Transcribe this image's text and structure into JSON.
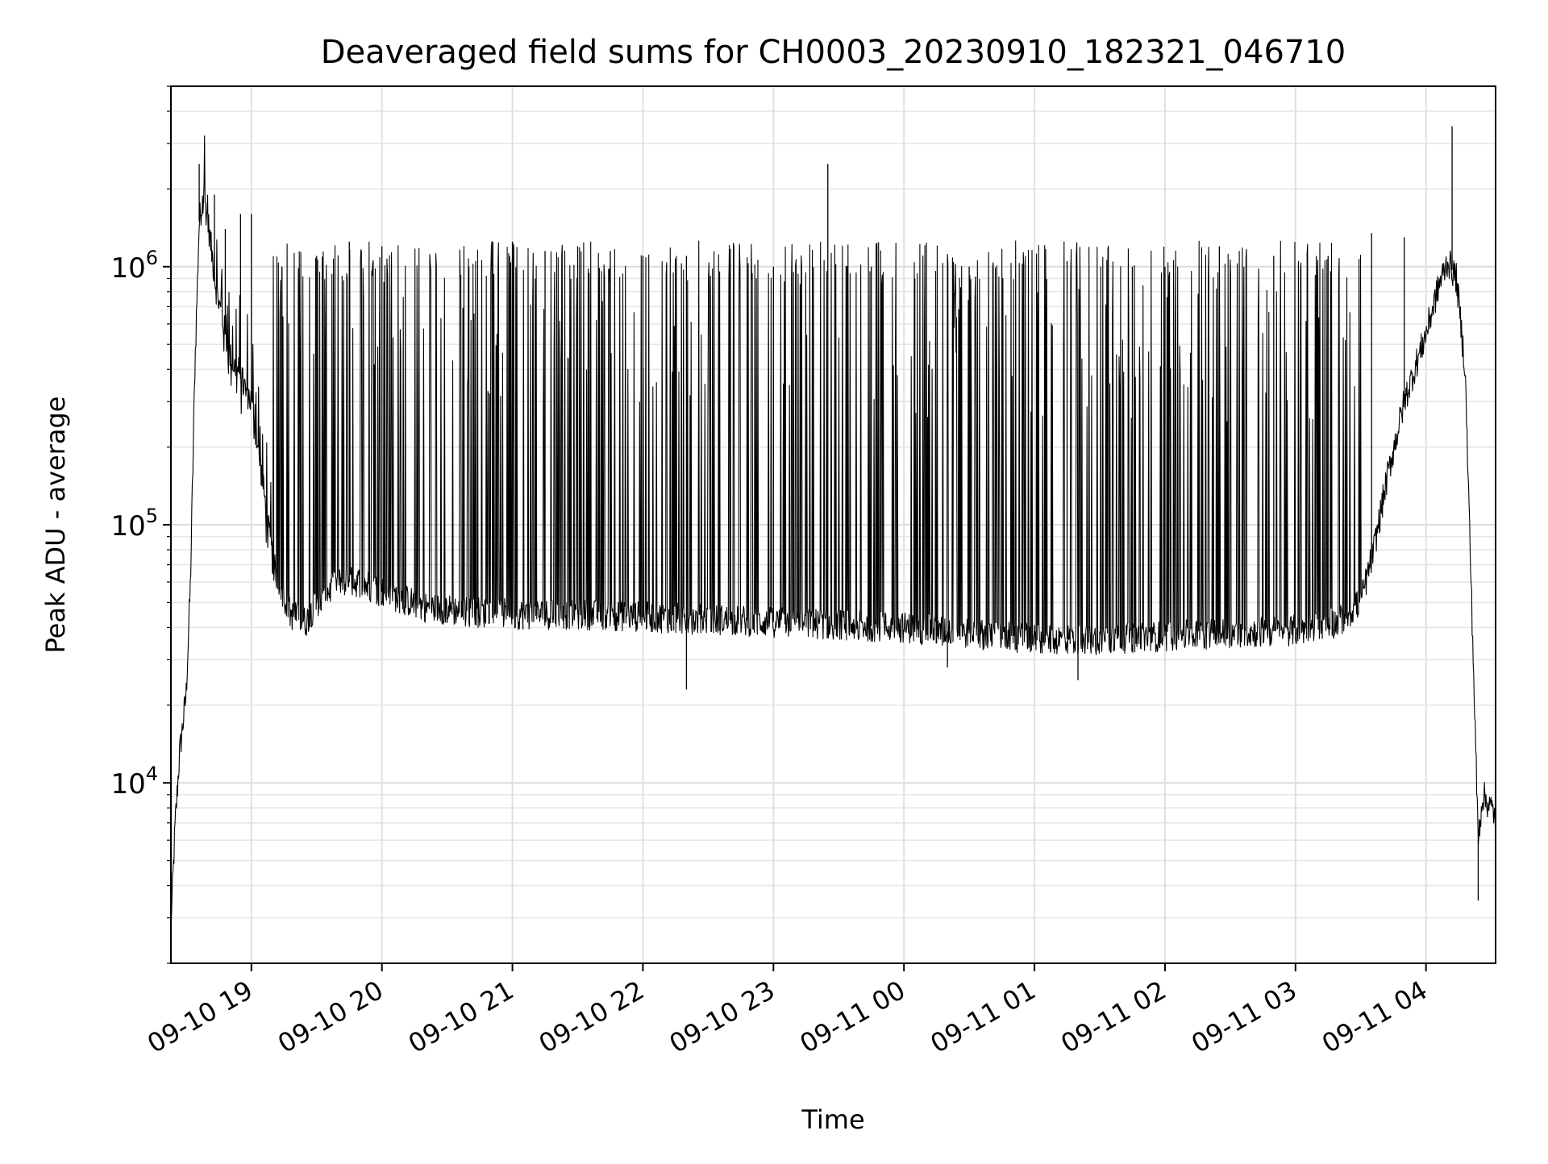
{
  "chart_data": {
    "type": "line",
    "title": "Deaveraged field sums for CH0003_20230910_182321_046710",
    "xlabel": "Time",
    "ylabel": "Peak ADU - average",
    "yscale": "log",
    "ylim": [
      2000,
      5000000
    ],
    "xlim": [
      "2023-09-10 18:23",
      "2023-09-11 04:32"
    ],
    "x_ticks": [
      {
        "time": "2023-09-10 19:00",
        "label": "09-10 19"
      },
      {
        "time": "2023-09-10 20:00",
        "label": "09-10 20"
      },
      {
        "time": "2023-09-10 21:00",
        "label": "09-10 21"
      },
      {
        "time": "2023-09-10 22:00",
        "label": "09-10 22"
      },
      {
        "time": "2023-09-10 23:00",
        "label": "09-10 23"
      },
      {
        "time": "2023-09-11 00:00",
        "label": "09-11 00"
      },
      {
        "time": "2023-09-11 01:00",
        "label": "09-11 01"
      },
      {
        "time": "2023-09-11 02:00",
        "label": "09-11 02"
      },
      {
        "time": "2023-09-11 03:00",
        "label": "09-11 03"
      },
      {
        "time": "2023-09-11 04:00",
        "label": "09-11 04"
      }
    ],
    "y_ticks": [
      {
        "value": 10000,
        "base": "10",
        "exp": "4"
      },
      {
        "value": 100000,
        "base": "10",
        "exp": "5"
      },
      {
        "value": 1000000,
        "base": "10",
        "exp": "6"
      }
    ],
    "grid": true,
    "line_color": "#000000",
    "series": [
      {
        "points": [
          [
            "2023-09-10 18:23",
            2800
          ],
          [
            "2023-09-10 18:25",
            7000
          ],
          [
            "2023-09-10 18:27",
            13000
          ],
          [
            "2023-09-10 18:30",
            22000
          ],
          [
            "2023-09-10 18:32",
            60000
          ],
          [
            "2023-09-10 18:34",
            400000
          ],
          [
            "2023-09-10 18:36",
            1500000
          ],
          [
            "2023-09-10 18:38",
            1900000
          ],
          [
            "2023-09-10 18:40",
            1500000
          ],
          [
            "2023-09-10 18:44",
            800000
          ],
          [
            "2023-09-10 18:50",
            450000
          ],
          [
            "2023-09-10 19:00",
            300000
          ],
          [
            "2023-09-10 19:05",
            150000
          ],
          [
            "2023-09-10 19:10",
            70000
          ],
          [
            "2023-09-10 19:18",
            45000
          ],
          [
            "2023-09-10 19:25",
            42000
          ],
          [
            "2023-09-10 19:30",
            50000
          ],
          [
            "2023-09-10 19:40",
            60000
          ],
          [
            "2023-09-10 19:50",
            60000
          ],
          [
            "2023-09-10 20:00",
            55000
          ],
          [
            "2023-09-10 20:20",
            48000
          ],
          [
            "2023-09-10 20:40",
            46000
          ],
          [
            "2023-09-10 21:00",
            45000
          ],
          [
            "2023-09-10 21:30",
            45000
          ],
          [
            "2023-09-10 22:00",
            44000
          ],
          [
            "2023-09-10 22:30",
            43000
          ],
          [
            "2023-09-10 23:00",
            42000
          ],
          [
            "2023-09-10 23:30",
            41000
          ],
          [
            "2023-09-11 00:00",
            40000
          ],
          [
            "2023-09-11 00:30",
            38000
          ],
          [
            "2023-09-11 01:00",
            36000
          ],
          [
            "2023-09-11 01:30",
            36000
          ],
          [
            "2023-09-11 02:00",
            37000
          ],
          [
            "2023-09-11 02:30",
            38000
          ],
          [
            "2023-09-11 03:00",
            39000
          ],
          [
            "2023-09-11 03:20",
            42000
          ],
          [
            "2023-09-11 03:30",
            50000
          ],
          [
            "2023-09-11 03:36",
            80000
          ],
          [
            "2023-09-11 03:42",
            150000
          ],
          [
            "2023-09-11 03:50",
            300000
          ],
          [
            "2023-09-11 04:00",
            550000
          ],
          [
            "2023-09-11 04:06",
            850000
          ],
          [
            "2023-09-11 04:10",
            1050000
          ],
          [
            "2023-09-11 04:14",
            900000
          ],
          [
            "2023-09-11 04:18",
            400000
          ],
          [
            "2023-09-11 04:21",
            50000
          ],
          [
            "2023-09-11 04:24",
            6000
          ],
          [
            "2023-09-11 04:26",
            9000
          ],
          [
            "2023-09-11 04:32",
            7500
          ]
        ],
        "spikes": [
          [
            "2023-09-10 18:36",
            2500000
          ],
          [
            "2023-09-10 18:43",
            1900000
          ],
          [
            "2023-09-10 18:48",
            1400000
          ],
          [
            "2023-09-10 18:55",
            1600000
          ],
          [
            "2023-09-10 19:00",
            1600000
          ],
          [
            "2023-09-10 19:14",
            1000000
          ],
          [
            "2023-09-10 19:30",
            1100000
          ],
          [
            "2023-09-10 19:45",
            1250000
          ],
          [
            "2023-09-10 20:00",
            1200000
          ],
          [
            "2023-09-10 20:40",
            1000000
          ],
          [
            "2023-09-10 21:00",
            1250000
          ],
          [
            "2023-09-10 21:15",
            1150000
          ],
          [
            "2023-09-10 21:30",
            1200000
          ],
          [
            "2023-09-10 21:45",
            1150000
          ],
          [
            "2023-09-10 22:00",
            1100000
          ],
          [
            "2023-09-10 22:20",
            1100000
          ],
          [
            "2023-09-10 22:40",
            1050000
          ],
          [
            "2023-09-10 23:00",
            1000000
          ],
          [
            "2023-09-10 23:25",
            2500000
          ],
          [
            "2023-09-10 23:45",
            1000000
          ],
          [
            "2023-09-11 00:05",
            900000
          ],
          [
            "2023-09-11 00:30",
            1000000
          ],
          [
            "2023-09-11 01:15",
            1050000
          ],
          [
            "2023-09-11 01:45",
            1000000
          ],
          [
            "2023-09-11 02:00",
            1000000
          ],
          [
            "2023-09-11 02:25",
            1200000
          ],
          [
            "2023-09-11 02:50",
            1100000
          ],
          [
            "2023-09-11 03:15",
            1100000
          ],
          [
            "2023-09-11 03:35",
            1350000
          ],
          [
            "2023-09-11 03:50",
            1300000
          ],
          [
            "2023-09-11 04:12",
            3500000
          ]
        ],
        "dips": [
          [
            "2023-09-10 22:20",
            23000
          ],
          [
            "2023-09-11 00:20",
            28000
          ],
          [
            "2023-09-11 01:20",
            25000
          ],
          [
            "2023-09-11 04:24",
            3500
          ]
        ]
      }
    ]
  }
}
